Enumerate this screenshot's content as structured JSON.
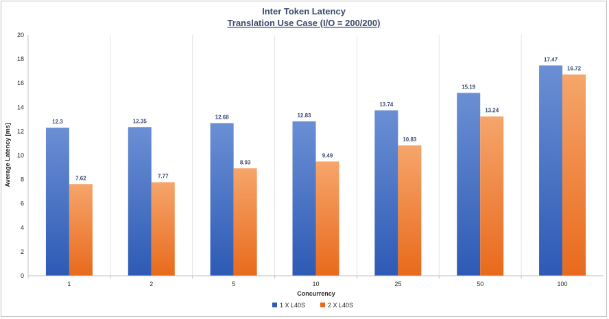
{
  "chart_data": {
    "type": "bar",
    "title": "Inter Token Latency",
    "subtitle": "Translation Use Case (I/O = 200/200)",
    "xlabel": "Concurrency",
    "ylabel": "Average Latency [ms]",
    "categories": [
      "1",
      "2",
      "5",
      "10",
      "25",
      "50",
      "100"
    ],
    "ylim": [
      0,
      20
    ],
    "yticks": [
      "0",
      "2",
      "4",
      "6",
      "8",
      "10",
      "12",
      "14",
      "16",
      "18",
      "20"
    ],
    "grid": "vertical",
    "legend_position": "bottom",
    "series": [
      {
        "name": "1 X L40S",
        "values": [
          12.3,
          12.35,
          12.68,
          12.83,
          13.74,
          15.19,
          17.47
        ],
        "labels": [
          "12.3",
          "12.35",
          "12.68",
          "12.83",
          "13.74",
          "15.19",
          "17.47"
        ],
        "color_top": "#6a8fd4",
        "color_bottom": "#2e5ab5"
      },
      {
        "name": "2 X L40S",
        "values": [
          7.62,
          7.77,
          8.93,
          9.49,
          10.83,
          13.24,
          16.72
        ],
        "labels": [
          "7.62",
          "7.77",
          "8.93",
          "9.49",
          "10.83",
          "13.24",
          "16.72"
        ],
        "color_top": "#f6a56b",
        "color_bottom": "#e86a1c"
      }
    ]
  }
}
